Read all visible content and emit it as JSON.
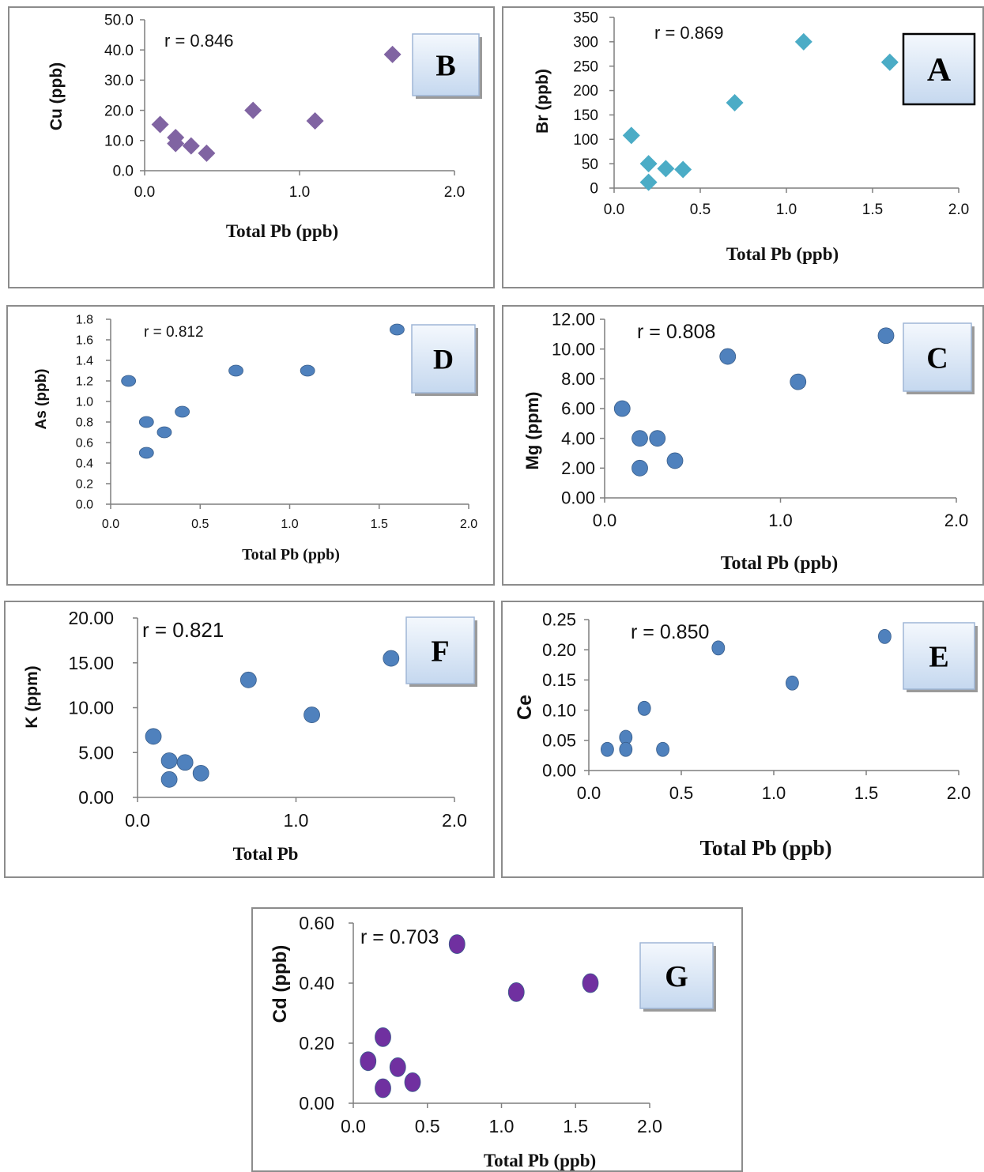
{
  "chart_data": [
    {
      "id": "B",
      "type": "scatter",
      "label": "B",
      "annotation": "r = 0.846",
      "xlabel": "Total Pb (ppb)",
      "ylabel": "Cu (ppb)",
      "xlim": [
        0,
        2
      ],
      "ylim": [
        0,
        50
      ],
      "xticks": [
        "0.0",
        "1.0",
        "2.0"
      ],
      "yticks": [
        "0.0",
        "10.0",
        "20.0",
        "30.0",
        "40.0",
        "50.0"
      ],
      "marker": "diamond",
      "color": "#8064a2",
      "x": [
        0.1,
        0.2,
        0.2,
        0.3,
        0.4,
        0.7,
        1.1,
        1.6
      ],
      "y": [
        15.3,
        11.0,
        9.0,
        8.2,
        5.8,
        20.0,
        16.5,
        38.5
      ]
    },
    {
      "id": "A",
      "type": "scatter",
      "label": "A",
      "annotation": "r = 0.869",
      "xlabel": "Total  Pb (ppb)",
      "ylabel": "Br (ppb)",
      "xlim": [
        0,
        2
      ],
      "ylim": [
        0,
        350
      ],
      "xticks": [
        "0.0",
        "0.5",
        "1.0",
        "1.5",
        "2.0"
      ],
      "yticks": [
        "0",
        "50",
        "100",
        "150",
        "200",
        "250",
        "300",
        "350"
      ],
      "marker": "diamond",
      "color": "#4bacc6",
      "x": [
        0.1,
        0.2,
        0.2,
        0.3,
        0.4,
        0.7,
        1.1,
        1.6
      ],
      "y": [
        108,
        50,
        12,
        40,
        38,
        175,
        300,
        258
      ]
    },
    {
      "id": "D",
      "type": "scatter",
      "label": "D",
      "annotation": "r = 0.812",
      "xlabel": "Total Pb (ppb)",
      "ylabel": "As  (ppb)",
      "xlim": [
        0,
        2
      ],
      "ylim": [
        0,
        1.8
      ],
      "xticks": [
        "0.0",
        "0.5",
        "1.0",
        "1.5",
        "2.0"
      ],
      "yticks": [
        "0.0",
        "0.2",
        "0.4",
        "0.6",
        "0.8",
        "1.0",
        "1.2",
        "1.4",
        "1.6",
        "1.8"
      ],
      "marker": "ellipse",
      "color": "#4f81bd",
      "x": [
        0.1,
        0.2,
        0.2,
        0.3,
        0.4,
        0.7,
        1.1,
        1.6
      ],
      "y": [
        1.2,
        0.8,
        0.5,
        0.7,
        0.9,
        1.3,
        1.3,
        1.7
      ]
    },
    {
      "id": "C",
      "type": "scatter",
      "label": "C",
      "annotation": "r = 0.808",
      "xlabel": "Total Pb (ppb)",
      "ylabel": "Mg  (ppm)",
      "xlim": [
        0,
        2
      ],
      "ylim": [
        0,
        12
      ],
      "xticks": [
        "0.0",
        "1.0",
        "2.0"
      ],
      "yticks": [
        "0.00",
        "2.00",
        "4.00",
        "6.00",
        "8.00",
        "10.00",
        "12.00"
      ],
      "marker": "circle",
      "color": "#4f81bd",
      "x": [
        0.1,
        0.2,
        0.2,
        0.3,
        0.4,
        0.7,
        1.1,
        1.6
      ],
      "y": [
        6.0,
        4.0,
        2.0,
        4.0,
        2.5,
        9.5,
        7.8,
        10.9
      ]
    },
    {
      "id": "F",
      "type": "scatter",
      "label": "F",
      "annotation": "r = 0.821",
      "xlabel": "Total Pb",
      "ylabel": "K (ppm)",
      "xlim": [
        0,
        2
      ],
      "ylim": [
        0,
        20
      ],
      "xticks": [
        "0.0",
        "1.0",
        "2.0"
      ],
      "yticks": [
        "0.00",
        "5.00",
        "10.00",
        "15.00",
        "20.00"
      ],
      "marker": "circle",
      "color": "#4f81bd",
      "x": [
        0.1,
        0.2,
        0.2,
        0.3,
        0.4,
        0.7,
        1.1,
        1.6
      ],
      "y": [
        6.8,
        4.1,
        2.0,
        3.9,
        2.7,
        13.1,
        9.2,
        15.5
      ]
    },
    {
      "id": "E",
      "type": "scatter",
      "label": "E",
      "annotation": "r = 0.850",
      "xlabel": "Total Pb (ppb)",
      "ylabel": "Ce",
      "xlim": [
        0,
        2
      ],
      "ylim": [
        0,
        0.25
      ],
      "xticks": [
        "0.0",
        "0.5",
        "1.0",
        "1.5",
        "2.0"
      ],
      "yticks": [
        "0.00",
        "0.05",
        "0.10",
        "0.15",
        "0.20",
        "0.25"
      ],
      "marker": "ellipse",
      "color": "#4f81bd",
      "x": [
        0.1,
        0.2,
        0.2,
        0.3,
        0.4,
        0.7,
        1.1,
        1.6
      ],
      "y": [
        0.035,
        0.055,
        0.035,
        0.103,
        0.035,
        0.203,
        0.145,
        0.222
      ]
    },
    {
      "id": "G",
      "type": "scatter",
      "label": "G",
      "annotation": "r = 0.703",
      "xlabel": "Total  Pb (ppb)",
      "ylabel": "Cd (ppb)",
      "xlim": [
        0,
        2
      ],
      "ylim": [
        0,
        0.6
      ],
      "xticks": [
        "0.0",
        "0.5",
        "1.0",
        "1.5",
        "2.0"
      ],
      "yticks": [
        "0.00",
        "0.20",
        "0.40",
        "0.60"
      ],
      "marker": "ellipse",
      "color": "#7030a0",
      "x": [
        0.1,
        0.2,
        0.2,
        0.3,
        0.4,
        0.7,
        1.1,
        1.6
      ],
      "y": [
        0.14,
        0.22,
        0.05,
        0.12,
        0.07,
        0.53,
        0.37,
        0.4
      ]
    }
  ]
}
